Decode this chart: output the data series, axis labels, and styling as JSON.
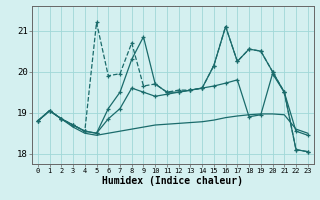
{
  "xlabel": "Humidex (Indice chaleur)",
  "x": [
    0,
    1,
    2,
    3,
    4,
    5,
    6,
    7,
    8,
    9,
    10,
    11,
    12,
    13,
    14,
    15,
    16,
    17,
    18,
    19,
    20,
    21,
    22,
    23
  ],
  "line_smooth": [
    18.8,
    19.05,
    18.85,
    18.65,
    18.5,
    18.45,
    18.5,
    18.55,
    18.6,
    18.65,
    18.7,
    18.72,
    18.74,
    18.76,
    18.78,
    18.82,
    18.88,
    18.92,
    18.95,
    18.97,
    18.97,
    18.95,
    18.6,
    18.5
  ],
  "line_trend1": [
    18.8,
    19.05,
    18.85,
    18.7,
    18.55,
    18.5,
    18.85,
    19.1,
    19.6,
    19.5,
    19.4,
    19.45,
    19.5,
    19.55,
    19.6,
    19.65,
    19.72,
    19.8,
    18.9,
    18.95,
    19.95,
    19.5,
    18.55,
    18.45
  ],
  "line_main": [
    18.8,
    19.05,
    18.85,
    18.7,
    18.55,
    21.2,
    19.9,
    19.95,
    20.7,
    19.65,
    19.7,
    19.5,
    19.55,
    19.55,
    19.6,
    20.15,
    21.1,
    20.25,
    20.55,
    20.5,
    20.0,
    19.5,
    18.1,
    18.05
  ],
  "line_upper": [
    18.8,
    19.05,
    18.85,
    18.7,
    18.55,
    18.5,
    19.1,
    19.5,
    20.3,
    20.85,
    19.7,
    19.5,
    19.5,
    19.55,
    19.6,
    20.15,
    21.1,
    20.25,
    20.55,
    20.5,
    20.0,
    19.5,
    18.1,
    18.05
  ],
  "bg_color": "#d4f0f0",
  "line_color": "#1a6b6b",
  "grid_color": "#a0d8d8",
  "ylim": [
    17.75,
    21.6
  ],
  "yticks": [
    18,
    19,
    20,
    21
  ]
}
